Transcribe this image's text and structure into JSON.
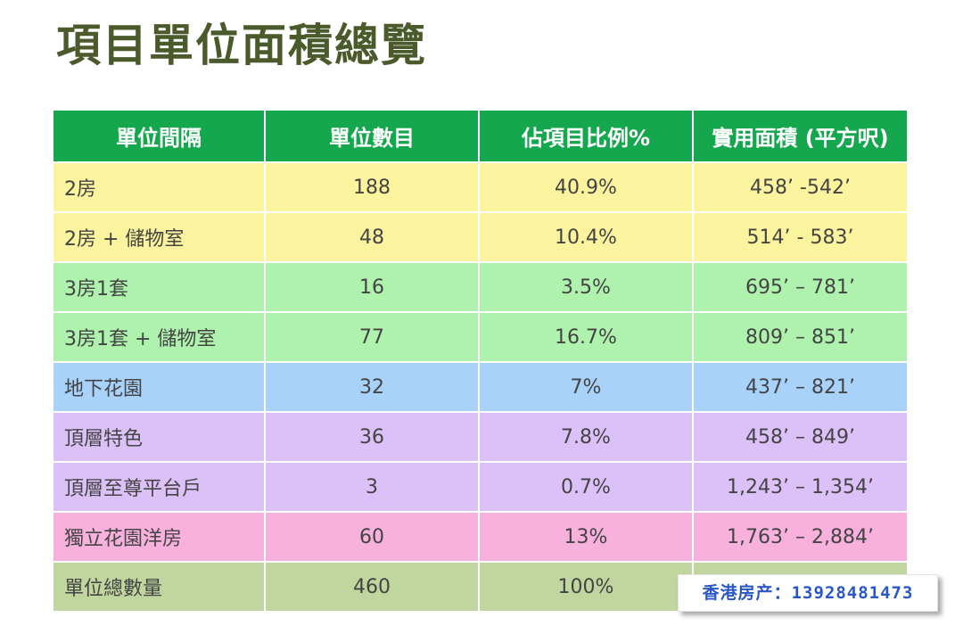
{
  "title": "項目單位面積總覽",
  "table": {
    "headers": [
      "單位間隔",
      "單位數目",
      "佔項目比例%",
      "實用面積 (平方呎)"
    ],
    "rows": [
      {
        "type": "2房",
        "count": "188",
        "share": "40.9%",
        "area": "458’ -542’",
        "color": "#fbf39d"
      },
      {
        "type": "2房 + 儲物室",
        "count": "48",
        "share": "10.4%",
        "area": "514’ - 583’",
        "color": "#fbf39d"
      },
      {
        "type": "3房1套",
        "count": "16",
        "share": "3.5%",
        "area": "695’ – 781’",
        "color": "#aef2ad"
      },
      {
        "type": "3房1套 + 儲物室",
        "count": "77",
        "share": "16.7%",
        "area": "809’ – 851’",
        "color": "#aef2ad"
      },
      {
        "type": "地下花園",
        "count": "32",
        "share": "7%",
        "area": "437’ – 821’",
        "color": "#a9d2fb"
      },
      {
        "type": "頂層特色",
        "count": "36",
        "share": "7.8%",
        "area": "458’ – 849’",
        "color": "#dcc0f8"
      },
      {
        "type": "頂層至尊平台戶",
        "count": "3",
        "share": "0.7%",
        "area": "1,243’ – 1,354’",
        "color": "#dcc0f8"
      },
      {
        "type": "獨立花園洋房",
        "count": "60",
        "share": "13%",
        "area": "1,763’ – 2,884’",
        "color": "#f8b1dc"
      },
      {
        "type": "單位總數量",
        "count": "460",
        "share": "100%",
        "area": "",
        "color": "#c1d59e"
      }
    ]
  },
  "watermark": "香港房产：13928481473",
  "colors": {
    "header": "#14a74d",
    "title": "#4a5a2a",
    "watermark": "#2a57c8"
  }
}
